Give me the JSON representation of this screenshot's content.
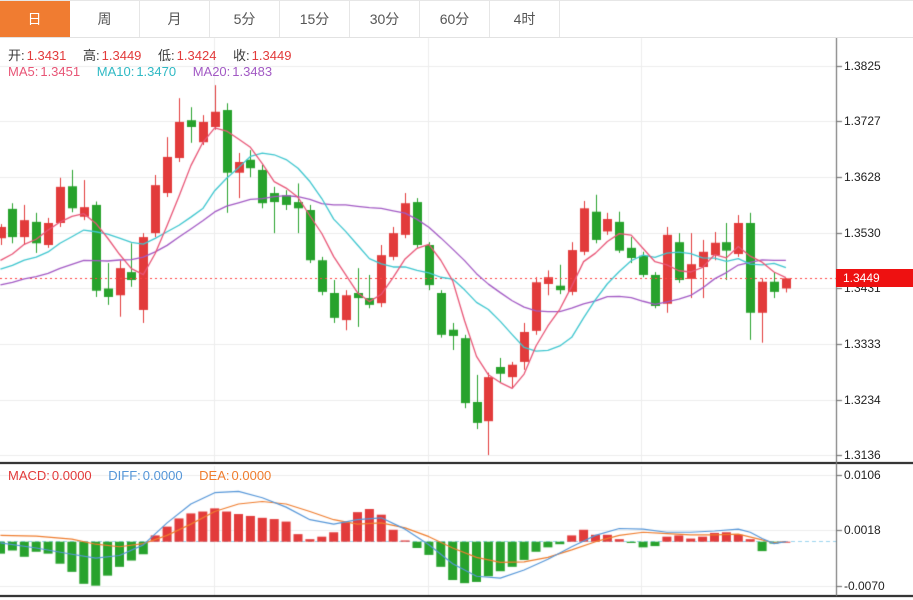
{
  "tabs": [
    {
      "label": "日",
      "active": true
    },
    {
      "label": "周",
      "active": false
    },
    {
      "label": "月",
      "active": false
    },
    {
      "label": "5分",
      "active": false
    },
    {
      "label": "15分",
      "active": false
    },
    {
      "label": "30分",
      "active": false
    },
    {
      "label": "60分",
      "active": false
    },
    {
      "label": "4时",
      "active": false
    }
  ],
  "legend": {
    "open_label": "开:",
    "open_value": "1.3431",
    "high_label": "高:",
    "high_value": "1.3449",
    "low_label": "低:",
    "low_value": "1.3424",
    "close_label": "收:",
    "close_value": "1.3449",
    "ma5_label": "MA5:",
    "ma5_value": "1.3451",
    "ma10_label": "MA10:",
    "ma10_value": "1.3470",
    "ma20_label": "MA20:",
    "ma20_value": "1.3483"
  },
  "macd_legend": {
    "macd_label": "MACD:",
    "macd_value": "0.0000",
    "diff_label": "DIFF:",
    "diff_value": "0.0000",
    "dea_label": "DEA:",
    "dea_value": "0.0000"
  },
  "axis": {
    "main_ticks": [
      "1.3825",
      "1.3727",
      "1.3628",
      "1.3530",
      "1.3431",
      "1.3333",
      "1.3234",
      "1.3136"
    ],
    "macd_ticks": [
      "0.0106",
      "0.0018",
      "-0.0070"
    ],
    "last_price_label": "1.3449"
  },
  "colors": {
    "up": "#e23b3b",
    "down": "#27a22c",
    "ma5": "#e85576",
    "ma10": "#3ec6cf",
    "ma20": "#a259c4",
    "diff": "#5596d8",
    "dea": "#ef7d2e",
    "tab_active": "#f07c31",
    "badge": "#ee1111",
    "grid": "#ededed",
    "axis_line": "#777777",
    "panel_border": "#1a1a1a",
    "price_dotted": "#ff4444",
    "zero_dash": "#9bd4ee",
    "text": "#222222"
  },
  "chart_data": {
    "type": "candlestick",
    "title": "",
    "panels": [
      "price",
      "macd"
    ],
    "timeframe_selected": "日",
    "price_axis_ticks": [
      1.3825,
      1.3727,
      1.3628,
      1.353,
      1.3431,
      1.3333,
      1.3234,
      1.3136
    ],
    "macd_axis_ticks": [
      0.0106,
      0.0018,
      -0.007
    ],
    "last_price": 1.3449,
    "ohlc_display": {
      "open": 1.3431,
      "high": 1.3449,
      "low": 1.3424,
      "close": 1.3449
    },
    "ma_display": {
      "ma5": 1.3451,
      "ma10": 1.347,
      "ma20": 1.3483
    },
    "macd_display": {
      "macd": 0.0,
      "diff": 0.0,
      "dea": 0.0
    },
    "ma_lines": [
      {
        "name": "MA5",
        "period": 5,
        "seed": 1.3466
      },
      {
        "name": "MA10",
        "period": 10,
        "seed": 1.3457
      },
      {
        "name": "MA20",
        "period": 20,
        "seed": 1.3432
      }
    ],
    "candles": [
      [
        1.352,
        1.3545,
        1.3508,
        1.354
      ],
      [
        1.3572,
        1.3582,
        1.3511,
        1.3522
      ],
      [
        1.3522,
        1.3579,
        1.3508,
        1.3552
      ],
      [
        1.3549,
        1.3565,
        1.3494,
        1.3511
      ],
      [
        1.3508,
        1.3556,
        1.3503,
        1.3547
      ],
      [
        1.3547,
        1.3627,
        1.354,
        1.3611
      ],
      [
        1.3612,
        1.3641,
        1.3566,
        1.3573
      ],
      [
        1.3558,
        1.3623,
        1.3552,
        1.3575
      ],
      [
        1.3579,
        1.3585,
        1.3416,
        1.3427
      ],
      [
        1.3431,
        1.3476,
        1.3402,
        1.3416
      ],
      [
        1.3419,
        1.3481,
        1.3381,
        1.3467
      ],
      [
        1.346,
        1.3511,
        1.3434,
        1.3446
      ],
      [
        1.3393,
        1.3529,
        1.337,
        1.3522
      ],
      [
        1.3529,
        1.3632,
        1.3522,
        1.3614
      ],
      [
        1.36,
        1.3699,
        1.3593,
        1.3664
      ],
      [
        1.3662,
        1.3768,
        1.3655,
        1.3726
      ],
      [
        1.3729,
        1.3752,
        1.3689,
        1.3717
      ],
      [
        1.369,
        1.3738,
        1.3685,
        1.3726
      ],
      [
        1.3717,
        1.3791,
        1.3712,
        1.3744
      ],
      [
        1.3747,
        1.3759,
        1.3565,
        1.3636
      ],
      [
        1.3636,
        1.3671,
        1.3591,
        1.3655
      ],
      [
        1.3659,
        1.3676,
        1.3628,
        1.3644
      ],
      [
        1.3641,
        1.365,
        1.3573,
        1.3582
      ],
      [
        1.36,
        1.3611,
        1.3529,
        1.3584
      ],
      [
        1.3596,
        1.3605,
        1.357,
        1.3579
      ],
      [
        1.3584,
        1.3617,
        1.3529,
        1.3573
      ],
      [
        1.357,
        1.3579,
        1.3476,
        1.3481
      ],
      [
        1.3481,
        1.3487,
        1.3419,
        1.3425
      ],
      [
        1.3423,
        1.3446,
        1.337,
        1.3379
      ],
      [
        1.3375,
        1.3428,
        1.3357,
        1.3419
      ],
      [
        1.3423,
        1.3467,
        1.3363,
        1.3414
      ],
      [
        1.3414,
        1.3455,
        1.3396,
        1.3402
      ],
      [
        1.3405,
        1.3508,
        1.3398,
        1.349
      ],
      [
        1.3487,
        1.354,
        1.3481,
        1.3529
      ],
      [
        1.3526,
        1.36,
        1.352,
        1.3582
      ],
      [
        1.3584,
        1.3591,
        1.3503,
        1.3508
      ],
      [
        1.3508,
        1.3513,
        1.3428,
        1.3437
      ],
      [
        1.3423,
        1.3428,
        1.3344,
        1.3349
      ],
      [
        1.3358,
        1.337,
        1.3322,
        1.3347
      ],
      [
        1.3343,
        1.3349,
        1.3219,
        1.3228
      ],
      [
        1.323,
        1.3278,
        1.3182,
        1.3193
      ],
      [
        1.3196,
        1.3282,
        1.3136,
        1.3274
      ],
      [
        1.3292,
        1.3308,
        1.3264,
        1.328
      ],
      [
        1.3274,
        1.3301,
        1.3255,
        1.3296
      ],
      [
        1.3301,
        1.337,
        1.3287,
        1.3354
      ],
      [
        1.3356,
        1.3451,
        1.3349,
        1.3442
      ],
      [
        1.3439,
        1.3463,
        1.3419,
        1.3451
      ],
      [
        1.3436,
        1.3473,
        1.3421,
        1.3428
      ],
      [
        1.3425,
        1.3513,
        1.3419,
        1.3499
      ],
      [
        1.3496,
        1.3586,
        1.349,
        1.3573
      ],
      [
        1.3567,
        1.3597,
        1.3511,
        1.3517
      ],
      [
        1.3532,
        1.3565,
        1.3526,
        1.3554
      ],
      [
        1.3549,
        1.3567,
        1.3494,
        1.3498
      ],
      [
        1.3503,
        1.3522,
        1.3476,
        1.3485
      ],
      [
        1.3489,
        1.3496,
        1.3451,
        1.3455
      ],
      [
        1.3455,
        1.346,
        1.3396,
        1.34
      ],
      [
        1.3404,
        1.354,
        1.3388,
        1.3526
      ],
      [
        1.3513,
        1.3529,
        1.3441,
        1.3446
      ],
      [
        1.3448,
        1.3529,
        1.3414,
        1.3474
      ],
      [
        1.3469,
        1.3517,
        1.3414,
        1.3496
      ],
      [
        1.349,
        1.3531,
        1.3481,
        1.3512
      ],
      [
        1.3513,
        1.3547,
        1.3446,
        1.3498
      ],
      [
        1.3492,
        1.3561,
        1.3487,
        1.3547
      ],
      [
        1.3547,
        1.3565,
        1.334,
        1.3388
      ],
      [
        1.3388,
        1.3449,
        1.3335,
        1.3443
      ],
      [
        1.3443,
        1.346,
        1.3414,
        1.3425
      ],
      [
        1.3431,
        1.3449,
        1.3424,
        1.3449
      ]
    ],
    "macd_hist": [
      -0.0019,
      -0.0014,
      -0.0024,
      -0.0016,
      -0.0019,
      -0.0035,
      -0.0048,
      -0.0067,
      -0.007,
      -0.0054,
      -0.004,
      -0.003,
      -0.002,
      0.001,
      0.0024,
      0.0037,
      0.0045,
      0.0048,
      0.0053,
      0.0048,
      0.0044,
      0.0041,
      0.0038,
      0.0036,
      0.0032,
      0.0012,
      0.0004,
      0.0008,
      0.0015,
      0.0031,
      0.0047,
      0.0052,
      0.0043,
      0.0019,
      0.0002,
      -0.001,
      -0.0021,
      -0.004,
      -0.0061,
      -0.0066,
      -0.0064,
      -0.0055,
      -0.0047,
      -0.004,
      -0.0029,
      -0.0016,
      -0.0009,
      -0.0004,
      0.001,
      0.0019,
      0.0011,
      0.0011,
      0.0004,
      -0.0002,
      -0.0009,
      -0.0007,
      0.0008,
      0.001,
      0.0005,
      0.0008,
      0.0014,
      0.0015,
      0.0011,
      0.0004,
      -0.0015,
      -0.0003,
      0.0
    ],
    "diff_points": [
      [
        1,
        -0.0002
      ],
      [
        4,
        -0.001
      ],
      [
        7,
        -0.002
      ],
      [
        9,
        -0.0026
      ],
      [
        11,
        -0.0022
      ],
      [
        13,
        -0.0005
      ],
      [
        15,
        0.003
      ],
      [
        17,
        0.006
      ],
      [
        19,
        0.0078
      ],
      [
        21,
        0.008
      ],
      [
        23,
        0.007
      ],
      [
        25,
        0.0055
      ],
      [
        27,
        0.0035
      ],
      [
        29,
        0.0028
      ],
      [
        31,
        0.0035
      ],
      [
        33,
        0.0038
      ],
      [
        35,
        0.002
      ],
      [
        37,
        -0.0005
      ],
      [
        39,
        -0.0035
      ],
      [
        41,
        -0.0055
      ],
      [
        43,
        -0.0058
      ],
      [
        45,
        -0.0045
      ],
      [
        47,
        -0.0028
      ],
      [
        49,
        -0.0008
      ],
      [
        51,
        0.001
      ],
      [
        53,
        0.0021
      ],
      [
        55,
        0.002
      ],
      [
        57,
        0.0015
      ],
      [
        59,
        0.0015
      ],
      [
        61,
        0.0017
      ],
      [
        63,
        0.002
      ],
      [
        64,
        0.0015
      ],
      [
        65,
        0.0005
      ],
      [
        66,
        -0.0003
      ],
      [
        67,
        0.0
      ]
    ],
    "dea_points": [
      [
        1,
        0.001
      ],
      [
        4,
        0.0009
      ],
      [
        7,
        0.0004
      ],
      [
        9,
        -0.0004
      ],
      [
        11,
        -0.0008
      ],
      [
        13,
        -0.0003
      ],
      [
        15,
        0.001
      ],
      [
        17,
        0.0028
      ],
      [
        19,
        0.0048
      ],
      [
        21,
        0.006
      ],
      [
        23,
        0.0064
      ],
      [
        25,
        0.006
      ],
      [
        27,
        0.0048
      ],
      [
        29,
        0.0035
      ],
      [
        31,
        0.0028
      ],
      [
        33,
        0.003
      ],
      [
        35,
        0.0022
      ],
      [
        37,
        0.0008
      ],
      [
        39,
        -0.001
      ],
      [
        41,
        -0.0025
      ],
      [
        43,
        -0.0033
      ],
      [
        45,
        -0.0032
      ],
      [
        47,
        -0.0025
      ],
      [
        49,
        -0.0013
      ],
      [
        51,
        0.0
      ],
      [
        53,
        0.001
      ],
      [
        55,
        0.0015
      ],
      [
        57,
        0.0013
      ],
      [
        59,
        0.0011
      ],
      [
        61,
        0.0011
      ],
      [
        63,
        0.0012
      ],
      [
        65,
        0.0003
      ],
      [
        66,
        -0.0002
      ],
      [
        67,
        0.0
      ]
    ]
  }
}
